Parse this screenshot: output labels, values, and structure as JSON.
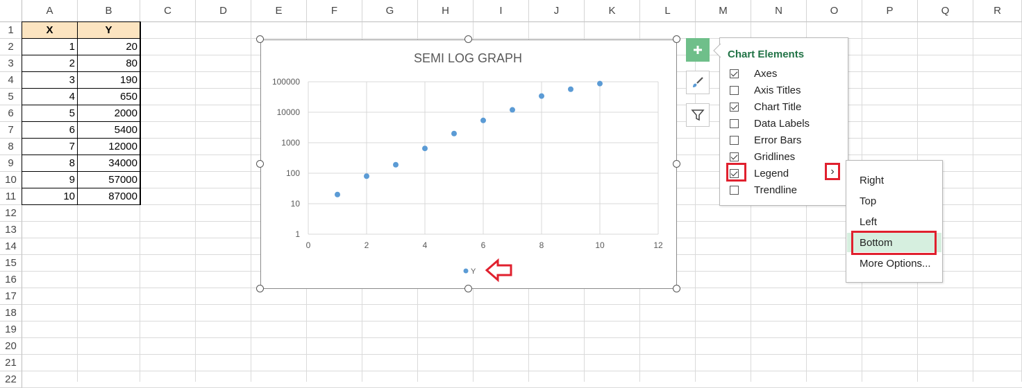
{
  "columns": [
    "A",
    "B",
    "C",
    "D",
    "E",
    "F",
    "G",
    "H",
    "I",
    "J",
    "K",
    "L",
    "M",
    "N",
    "O",
    "P",
    "Q",
    "R"
  ],
  "rows": [
    "1",
    "2",
    "3",
    "4",
    "5",
    "6",
    "7",
    "8",
    "9",
    "10",
    "11",
    "12",
    "13",
    "14",
    "15",
    "16",
    "17",
    "18",
    "19",
    "20",
    "21",
    "22"
  ],
  "table": {
    "headers": [
      "X",
      "Y"
    ],
    "x": [
      "1",
      "2",
      "3",
      "4",
      "5",
      "6",
      "7",
      "8",
      "9",
      "10"
    ],
    "y": [
      "20",
      "80",
      "190",
      "650",
      "2000",
      "5400",
      "12000",
      "34000",
      "57000",
      "87000"
    ]
  },
  "chart_data": {
    "type": "scatter",
    "title": "SEMI LOG GRAPH",
    "x": [
      1,
      2,
      3,
      4,
      5,
      6,
      7,
      8,
      9,
      10
    ],
    "series": [
      {
        "name": "Y",
        "values": [
          20,
          80,
          190,
          650,
          2000,
          5400,
          12000,
          34000,
          57000,
          87000
        ]
      }
    ],
    "xlim": [
      0,
      12
    ],
    "x_ticks": [
      "0",
      "2",
      "4",
      "6",
      "8",
      "10",
      "12"
    ],
    "y_scale": "log",
    "ylim": [
      1,
      100000
    ],
    "y_ticks": [
      "1",
      "10",
      "100",
      "1000",
      "10000",
      "100000"
    ],
    "grid": true,
    "legend": "bottom",
    "marker_color": "#5b9bd5"
  },
  "chart_elements": {
    "title": "Chart Elements",
    "items": [
      {
        "label": "Axes",
        "checked": true
      },
      {
        "label": "Axis Titles",
        "checked": false
      },
      {
        "label": "Chart Title",
        "checked": true
      },
      {
        "label": "Data Labels",
        "checked": false
      },
      {
        "label": "Error Bars",
        "checked": false
      },
      {
        "label": "Gridlines",
        "checked": true
      },
      {
        "label": "Legend",
        "checked": true
      },
      {
        "label": "Trendline",
        "checked": false
      }
    ],
    "expand_glyph": "›"
  },
  "legend_submenu": {
    "items": [
      "Right",
      "Top",
      "Left",
      "Bottom",
      "More Options..."
    ],
    "selected": "Bottom"
  },
  "side_buttons": [
    "plus-icon",
    "brush-icon",
    "filter-icon"
  ],
  "colors": {
    "accent": "#217346",
    "highlight": "#e0202e",
    "header_fill": "#fce4c0"
  }
}
